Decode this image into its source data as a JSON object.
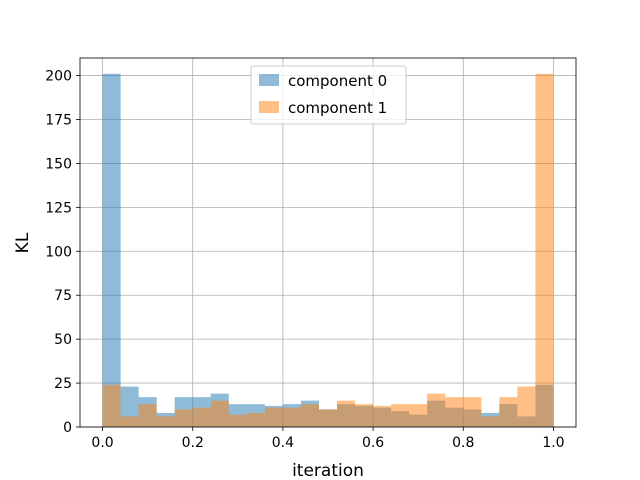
{
  "chart_data": {
    "type": "bar",
    "subtype": "histogram-overlay",
    "title": "",
    "xlabel": "iteration",
    "ylabel": "KL",
    "xlim": [
      -0.05,
      1.05
    ],
    "ylim": [
      0,
      210
    ],
    "grid": true,
    "legend_position": "top-center",
    "x_ticks": [
      0.0,
      0.2,
      0.4,
      0.6,
      0.8,
      1.0
    ],
    "x_tick_labels": [
      "0.0",
      "0.2",
      "0.4",
      "0.6",
      "0.8",
      "1.0"
    ],
    "y_ticks": [
      0,
      25,
      50,
      75,
      100,
      125,
      150,
      175,
      200
    ],
    "y_tick_labels": [
      "0",
      "25",
      "50",
      "75",
      "100",
      "125",
      "150",
      "175",
      "200"
    ],
    "bin_edges": [
      0.0,
      0.04,
      0.08,
      0.12,
      0.16,
      0.2,
      0.24,
      0.28,
      0.32,
      0.36,
      0.4,
      0.44,
      0.48,
      0.52,
      0.56,
      0.6,
      0.64,
      0.68,
      0.72,
      0.76,
      0.8,
      0.84,
      0.88,
      0.92,
      0.96,
      1.0
    ],
    "series": [
      {
        "name": "component 0",
        "color": "#1f77b4",
        "opacity": 0.5,
        "values": [
          201,
          23,
          17,
          8,
          17,
          17,
          19,
          13,
          13,
          12,
          13,
          15,
          10,
          13,
          12,
          11,
          9,
          7,
          15,
          11,
          10,
          8,
          13,
          6,
          24
        ]
      },
      {
        "name": "component 1",
        "color": "#ff7f0e",
        "opacity": 0.5,
        "values": [
          24,
          6,
          13,
          6,
          10,
          11,
          15,
          7,
          8,
          11,
          11,
          13,
          10,
          15,
          13,
          12,
          13,
          13,
          19,
          17,
          17,
          6,
          17,
          23,
          201
        ]
      }
    ]
  }
}
